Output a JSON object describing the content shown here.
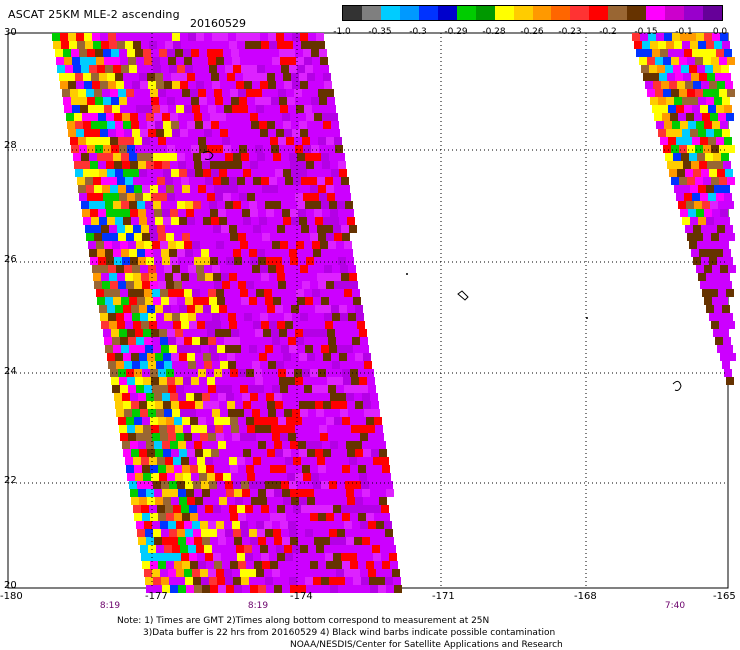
{
  "header": {
    "title": "ASCAT 25KM MLE-2 ascending",
    "date": "20160529"
  },
  "colorbar": {
    "colors": [
      "#333333",
      "#7f7f7f",
      "#00ccff",
      "#0099ff",
      "#0033ff",
      "#0000cc",
      "#00cc00",
      "#009900",
      "#ffff00",
      "#ffcc00",
      "#ff9900",
      "#ff6600",
      "#ff3333",
      "#ff0000",
      "#996633",
      "#663300",
      "#ff00ff",
      "#cc00cc",
      "#9900cc",
      "#660099"
    ],
    "tick_labels": [
      "-1.0",
      "-0.35",
      "-0.3",
      "-0.29",
      "-0.28",
      "-0.26",
      "-0.23",
      "-0.2",
      "-0.15",
      "-0.1",
      "0.0"
    ]
  },
  "axes": {
    "y_labels": [
      "30",
      "28",
      "26",
      "24",
      "22",
      "20"
    ],
    "x_labels": [
      "-180",
      "-177",
      "-174",
      "-171",
      "-168",
      "-165"
    ]
  },
  "pass_times": [
    "8:19",
    "8:19",
    "7:40"
  ],
  "notes": {
    "line1": "Note: 1) Times are GMT 2)Times along bottom correspond to measurement at 25N",
    "line2": "3)Data buffer is 22 hrs from 20160529 4) Black wind barbs indicate possible contamination",
    "line3": "NOAA/NESDIS/Center for Satellite Applications and Research"
  }
}
